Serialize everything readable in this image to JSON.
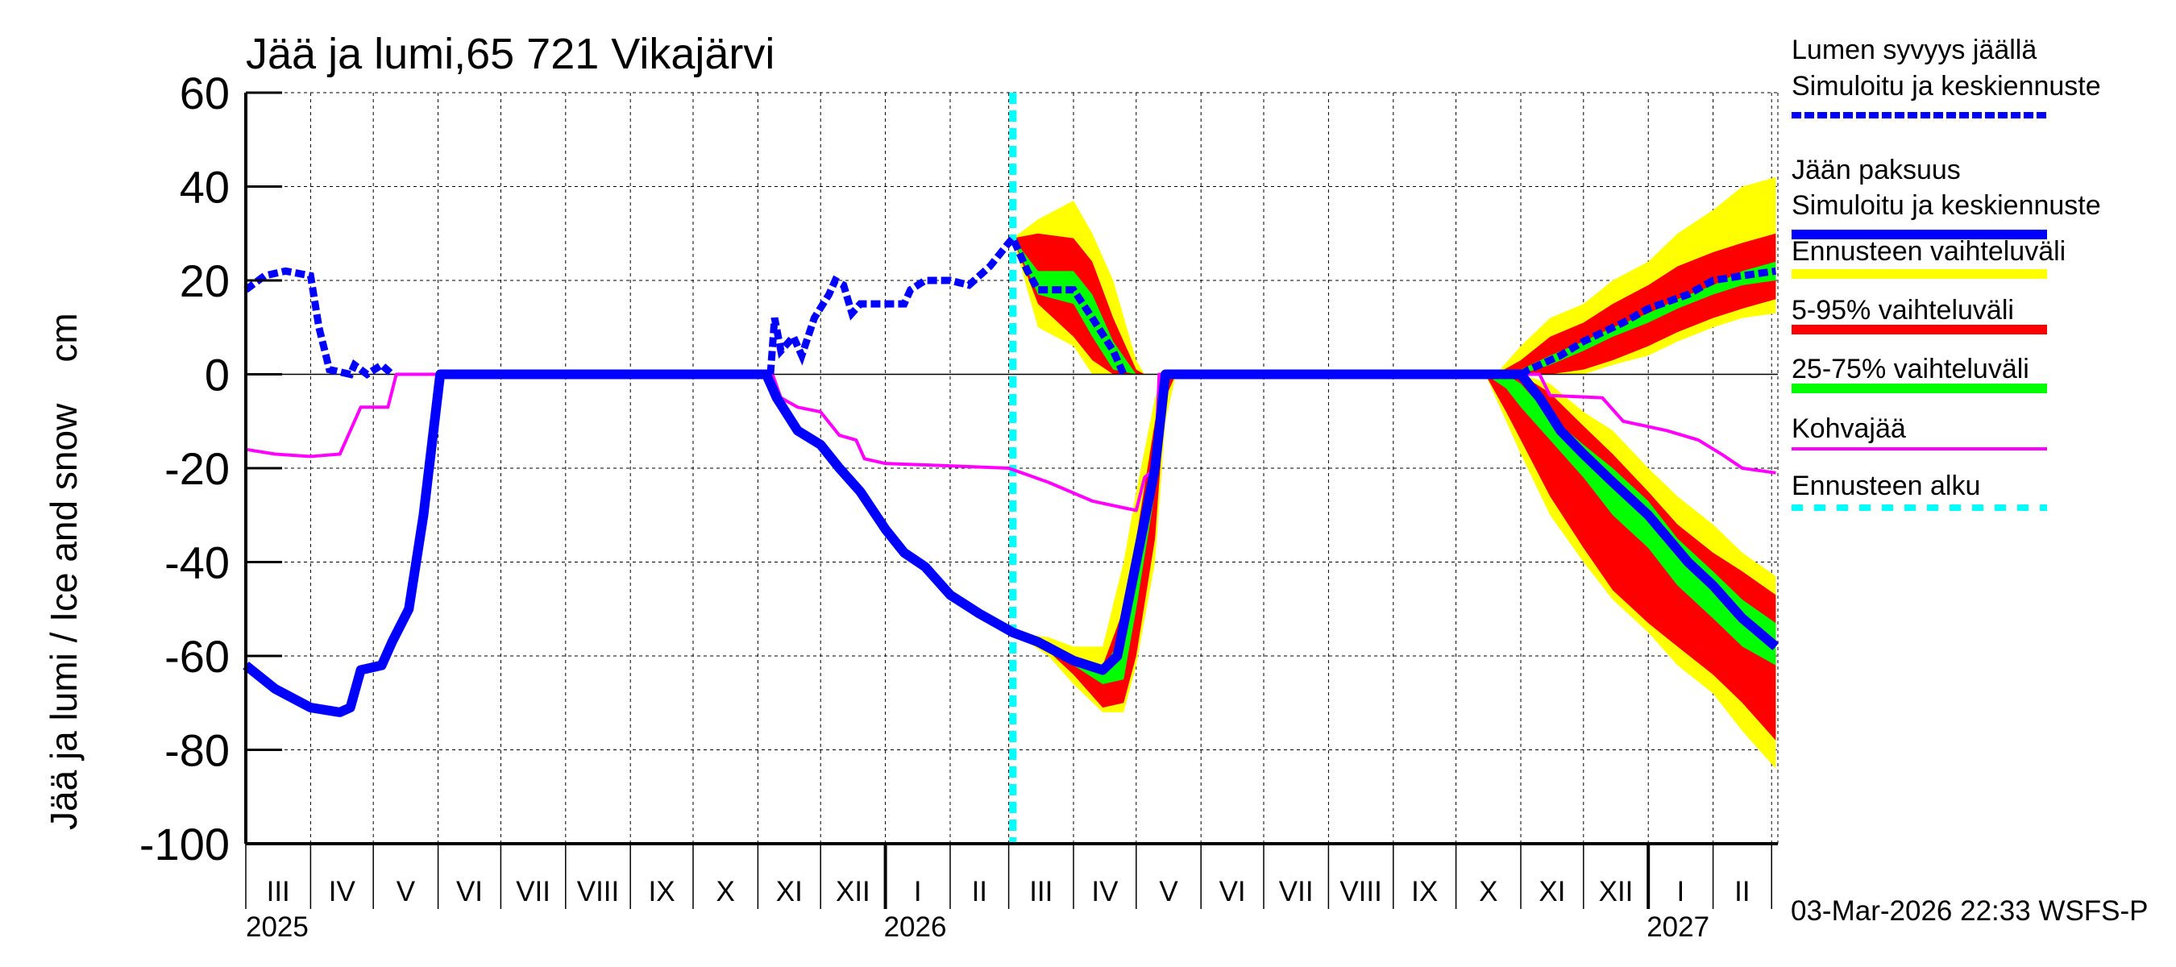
{
  "chart_data": {
    "type": "area",
    "title": "Jää ja lumi,65 721 Vikajärvi",
    "ylabel": "Jää ja lumi / Ice and snow    cm",
    "ylim": [
      -100,
      60
    ],
    "yticks": [
      60,
      40,
      20,
      0,
      -20,
      -40,
      -60,
      -80,
      -100
    ],
    "xlim": [
      "2025-03-01",
      "2027-03-04"
    ],
    "grid": true,
    "month_labels": [
      "III",
      "IV",
      "V",
      "VI",
      "VII",
      "VIII",
      "IX",
      "X",
      "XI",
      "XII",
      "I",
      "II",
      "III",
      "IV",
      "V",
      "VI",
      "VII",
      "VIII",
      "IX",
      "X",
      "XI",
      "XII",
      "I",
      "II"
    ],
    "year_labels": [
      {
        "date": "2025-03-01",
        "label": "2025"
      },
      {
        "date": "2026-01-01",
        "label": "2026"
      },
      {
        "date": "2027-01-01",
        "label": "2027"
      }
    ],
    "forecast_start": "2026-03-03",
    "legend_placement": "right",
    "legend": [
      {
        "line1": "Lumen syvyys jäällä",
        "line2": "Simuloitu ja keskiennuste",
        "color": "#0000ff",
        "style": "dashed"
      },
      {
        "line1": "Jään paksuus",
        "line2": "Simuloitu ja keskiennuste",
        "color": "#0000ff",
        "style": "solid"
      },
      {
        "line1": "Ennusteen vaihteluväli",
        "color": "#ffff00",
        "style": "solid"
      },
      {
        "line1": "5-95% vaihteluväli",
        "color": "#ff0000",
        "style": "solid"
      },
      {
        "line1": "25-75% vaihteluväli",
        "color": "#00ff00",
        "style": "solid"
      },
      {
        "line1": "Kohvajää",
        "color": "#ff00ff",
        "style": "thin"
      },
      {
        "line1": "Ennusteen alku",
        "color": "#00ffff",
        "style": "dotted"
      }
    ],
    "bands": [
      {
        "band": "range",
        "color": "#ffff00",
        "dates": [
          "2026-03-03",
          "2026-03-15",
          "2026-04-01",
          "2026-04-10",
          "2026-04-20",
          "2026-05-01",
          "2026-05-05"
        ],
        "upper": [
          29,
          33,
          37,
          30,
          20,
          3,
          0
        ],
        "lower": [
          29,
          10,
          6,
          0,
          0,
          0,
          0
        ]
      },
      {
        "band": "5-95",
        "color": "#ff0000",
        "dates": [
          "2026-03-03",
          "2026-03-15",
          "2026-04-01",
          "2026-04-10",
          "2026-04-20",
          "2026-05-01",
          "2026-05-05"
        ],
        "upper": [
          29,
          30,
          29,
          24,
          12,
          1,
          0
        ],
        "lower": [
          29,
          15,
          8,
          3,
          0,
          0,
          0
        ]
      },
      {
        "band": "25-75",
        "color": "#00ff00",
        "dates": [
          "2026-03-03",
          "2026-03-15",
          "2026-04-01",
          "2026-04-10",
          "2026-04-20",
          "2026-05-01",
          "2026-05-05"
        ],
        "upper": [
          29,
          22,
          22,
          17,
          7,
          0,
          0
        ],
        "lower": [
          29,
          17,
          15,
          8,
          1,
          0,
          0
        ]
      },
      {
        "band": "range",
        "color": "#ffff00",
        "dates": [
          "2026-10-20",
          "2026-11-01",
          "2026-11-15",
          "2026-12-01",
          "2026-12-15",
          "2027-01-01",
          "2027-01-15",
          "2027-02-01",
          "2027-02-15",
          "2027-03-03"
        ],
        "upper": [
          0,
          6,
          12,
          15,
          20,
          24,
          30,
          35,
          40,
          42
        ],
        "lower": [
          0,
          0,
          0,
          0,
          2,
          4,
          7,
          10,
          12,
          13
        ]
      },
      {
        "band": "5-95",
        "color": "#ff0000",
        "dates": [
          "2026-10-20",
          "2026-11-01",
          "2026-11-15",
          "2026-12-01",
          "2026-12-15",
          "2027-01-01",
          "2027-01-15",
          "2027-02-01",
          "2027-02-15",
          "2027-03-03"
        ],
        "upper": [
          0,
          3,
          8,
          11,
          15,
          19,
          23,
          26,
          28,
          30
        ],
        "lower": [
          0,
          0,
          0,
          1,
          3,
          6,
          9,
          12,
          14,
          16
        ]
      },
      {
        "band": "25-75",
        "color": "#00ff00",
        "dates": [
          "2026-10-20",
          "2026-11-01",
          "2026-11-15",
          "2026-12-01",
          "2026-12-15",
          "2027-01-01",
          "2027-01-15",
          "2027-02-01",
          "2027-02-15",
          "2027-03-03"
        ],
        "upper": [
          0,
          1,
          4,
          7,
          10,
          13,
          16,
          19,
          22,
          24
        ],
        "lower": [
          0,
          0,
          2,
          5,
          8,
          11,
          14,
          17,
          19,
          20
        ]
      },
      {
        "band": "range",
        "color": "#ffff00",
        "dates": [
          "2026-03-03",
          "2026-03-20",
          "2026-04-01",
          "2026-04-15",
          "2026-04-25",
          "2026-05-01",
          "2026-05-10",
          "2026-05-15",
          "2026-05-20"
        ],
        "upper": [
          -55,
          -56,
          -58,
          -58,
          -40,
          -25,
          -5,
          0,
          0
        ],
        "lower": [
          -55,
          -60,
          -66,
          -72,
          -72,
          -62,
          -40,
          -10,
          0
        ]
      },
      {
        "band": "5-95",
        "color": "#ff0000",
        "dates": [
          "2026-03-03",
          "2026-03-20",
          "2026-04-01",
          "2026-04-15",
          "2026-04-25",
          "2026-05-01",
          "2026-05-10",
          "2026-05-15",
          "2026-05-20"
        ],
        "upper": [
          -55,
          -57,
          -60,
          -62,
          -50,
          -35,
          -10,
          0,
          0
        ],
        "lower": [
          -55,
          -59,
          -64,
          -71,
          -70,
          -60,
          -35,
          -5,
          0
        ]
      },
      {
        "band": "25-75",
        "color": "#00ff00",
        "dates": [
          "2026-03-03",
          "2026-03-20",
          "2026-04-01",
          "2026-04-15",
          "2026-04-25",
          "2026-05-01",
          "2026-05-10",
          "2026-05-15",
          "2026-05-20"
        ],
        "upper": [
          -55,
          -58,
          -62,
          -63,
          -55,
          -40,
          -15,
          0,
          0
        ],
        "lower": [
          -55,
          -58,
          -62,
          -66,
          -65,
          -50,
          -25,
          -2,
          0
        ]
      },
      {
        "band": "range",
        "color": "#ffff00",
        "dates": [
          "2026-10-15",
          "2026-10-25",
          "2026-11-01",
          "2026-11-15",
          "2026-12-01",
          "2026-12-15",
          "2027-01-01",
          "2027-01-15",
          "2027-02-01",
          "2027-02-15",
          "2027-03-03"
        ],
        "upper": [
          0,
          0,
          0,
          -2,
          -8,
          -12,
          -20,
          -26,
          -32,
          -38,
          -43
        ],
        "lower": [
          0,
          -10,
          -17,
          -30,
          -40,
          -48,
          -55,
          -62,
          -68,
          -76,
          -84
        ]
      },
      {
        "band": "5-95",
        "color": "#ff0000",
        "dates": [
          "2026-10-15",
          "2026-10-25",
          "2026-11-01",
          "2026-11-15",
          "2026-12-01",
          "2026-12-15",
          "2027-01-01",
          "2027-01-15",
          "2027-02-01",
          "2027-02-15",
          "2027-03-03"
        ],
        "upper": [
          0,
          0,
          0,
          -4,
          -11,
          -17,
          -25,
          -32,
          -38,
          -42,
          -47
        ],
        "lower": [
          0,
          -8,
          -14,
          -26,
          -37,
          -46,
          -53,
          -58,
          -64,
          -70,
          -78
        ]
      },
      {
        "band": "25-75",
        "color": "#00ff00",
        "dates": [
          "2026-10-15",
          "2026-10-25",
          "2026-11-01",
          "2026-11-15",
          "2026-12-01",
          "2026-12-15",
          "2027-01-01",
          "2027-01-15",
          "2027-02-01",
          "2027-02-15",
          "2027-03-03"
        ],
        "upper": [
          0,
          0,
          -2,
          -9,
          -15,
          -20,
          -27,
          -35,
          -42,
          -48,
          -53
        ],
        "lower": [
          0,
          -3,
          -7,
          -14,
          -22,
          -30,
          -37,
          -45,
          -52,
          -58,
          -62
        ]
      }
    ],
    "series": [
      {
        "name": "Kohvajää",
        "color": "#ff00ff",
        "style": "thin",
        "dates": [
          "2025-03-01",
          "2025-03-15",
          "2025-04-01",
          "2025-04-15",
          "2025-04-20",
          "2025-04-25",
          "2025-05-08",
          "2025-05-12",
          "2025-11-08",
          "2025-11-12",
          "2025-11-20",
          "2025-12-01",
          "2025-12-10",
          "2025-12-18",
          "2025-12-22",
          "2026-01-01",
          "2026-02-01",
          "2026-03-01",
          "2026-03-20",
          "2026-04-10",
          "2026-05-01",
          "2026-05-05",
          "2026-05-10",
          "2026-05-12",
          "2026-11-10",
          "2026-11-15",
          "2026-12-10",
          "2026-12-20",
          "2027-01-10",
          "2027-01-25",
          "2027-02-05",
          "2027-02-15",
          "2027-03-03"
        ],
        "values": [
          -16,
          -17,
          -17.5,
          -17,
          -12,
          -7,
          -7,
          0,
          0,
          -5,
          -7,
          -8,
          -13,
          -14,
          -18,
          -19,
          -19.5,
          -20,
          -23,
          -27,
          -29,
          -22,
          -20,
          0,
          0,
          -4.5,
          -5,
          -10,
          -12,
          -14,
          -17,
          -20,
          -21
        ]
      },
      {
        "name": "Lumen syvyys jäällä",
        "color": "#0000ff",
        "style": "dashed",
        "segments": [
          {
            "dates": [
              "2025-03-01",
              "2025-03-10",
              "2025-03-20",
              "2025-04-01",
              "2025-04-05",
              "2025-04-10",
              "2025-04-20",
              "2025-04-22",
              "2025-04-28",
              "2025-05-05",
              "2025-05-10"
            ],
            "values": [
              18,
              21,
              22,
              21,
              10,
              1,
              0,
              2,
              0,
              2,
              0
            ]
          },
          {
            "dates": [
              "2025-11-07",
              "2025-11-09",
              "2025-11-12",
              "2025-11-18",
              "2025-11-22",
              "2025-11-28",
              "2025-12-05",
              "2025-12-08",
              "2025-12-12",
              "2025-12-16",
              "2025-12-20",
              "2026-01-01",
              "2026-01-10",
              "2026-01-13",
              "2026-01-20",
              "2026-02-01",
              "2026-02-10",
              "2026-02-20",
              "2026-03-01",
              "2026-03-03",
              "2026-03-10",
              "2026-03-15",
              "2026-04-01",
              "2026-04-10",
              "2026-04-20",
              "2026-04-25"
            ],
            "values": [
              0,
              12,
              5,
              8,
              4,
              12,
              17,
              20,
              19,
              13,
              15,
              15,
              15,
              18,
              20,
              20,
              19,
              23,
              28,
              29,
              22,
              18,
              18,
              12,
              5,
              0
            ]
          },
          {
            "dates": [
              "2026-11-01",
              "2026-11-05",
              "2026-11-20",
              "2026-12-01",
              "2026-12-20",
              "2027-01-01",
              "2027-01-20",
              "2027-02-01",
              "2027-02-15",
              "2027-03-03"
            ],
            "values": [
              0,
              1,
              4,
              7,
              11,
              14,
              17,
              20,
              21,
              22
            ]
          }
        ]
      },
      {
        "name": "Jään paksuus",
        "color": "#0000ff",
        "style": "thick",
        "dates": [
          "2025-03-01",
          "2025-03-15",
          "2025-04-01",
          "2025-04-15",
          "2025-04-20",
          "2025-04-25",
          "2025-05-05",
          "2025-05-10",
          "2025-05-18",
          "2025-05-25",
          "2025-06-02",
          "2025-11-05",
          "2025-11-10",
          "2025-11-20",
          "2025-12-01",
          "2025-12-10",
          "2025-12-20",
          "2026-01-01",
          "2026-01-10",
          "2026-01-20",
          "2026-02-01",
          "2026-02-15",
          "2026-03-03",
          "2026-03-15",
          "2026-04-01",
          "2026-04-15",
          "2026-04-22",
          "2026-05-01",
          "2026-05-10",
          "2026-05-15",
          "2026-11-01",
          "2026-11-10",
          "2026-11-20",
          "2026-12-01",
          "2026-12-15",
          "2027-01-01",
          "2027-01-20",
          "2027-02-01",
          "2027-02-15",
          "2027-03-03"
        ],
        "values": [
          -62,
          -67,
          -71,
          -72,
          -71,
          -63,
          -62,
          -57,
          -50,
          -30,
          0,
          0,
          -5,
          -12,
          -15,
          -20,
          -25,
          -33,
          -38,
          -41,
          -47,
          -51,
          -55,
          -57,
          -61,
          -63,
          -60,
          -40,
          -20,
          0,
          0,
          -5,
          -12,
          -17,
          -23,
          -30,
          -40,
          -45,
          -52,
          -58
        ]
      }
    ]
  },
  "footer": {
    "timestamp": "03-Mar-2026 22:33 WSFS-P"
  }
}
